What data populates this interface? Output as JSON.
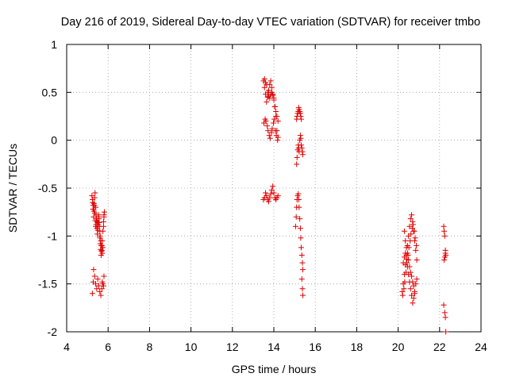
{
  "chart_data": {
    "type": "scatter",
    "title": "Day 216 of 2019, Sidereal Day-to-day VTEC variation (SDTVAR) for receiver tmbo",
    "xlabel": "GPS time / hours",
    "ylabel": "SDTVAR / TECUs",
    "xlim": [
      4,
      24
    ],
    "ylim": [
      -2,
      1
    ],
    "xticks": [
      4,
      6,
      8,
      10,
      12,
      14,
      16,
      18,
      20,
      22,
      24
    ],
    "yticks": [
      1,
      0.5,
      0,
      -0.5,
      -1,
      -1.5,
      -2
    ],
    "xtick_labels": [
      "4",
      "6",
      "8",
      "10",
      "12",
      "14",
      "16",
      "18",
      "20",
      "22",
      "24"
    ],
    "ytick_labels": [
      "1",
      "0.5",
      "0",
      "-0.5",
      "-1",
      "-1.5",
      "-2"
    ],
    "grid": true,
    "marker": "+",
    "color": "#e00000",
    "series": [
      {
        "name": "SDTVAR",
        "x": [
          5.22,
          5.25,
          5.28,
          5.3,
          5.32,
          5.35,
          5.37,
          5.4,
          5.42,
          5.45,
          5.47,
          5.5,
          5.52,
          5.55,
          5.57,
          5.6,
          5.62,
          5.65,
          5.67,
          5.7,
          5.72,
          5.75,
          5.78,
          5.8,
          5.82,
          5.25,
          5.27,
          5.3,
          5.32,
          5.34,
          5.36,
          5.38,
          5.4,
          5.42,
          5.44,
          5.46,
          5.48,
          5.5,
          5.52,
          5.54,
          5.56,
          5.58,
          5.6,
          5.62,
          5.64,
          5.66,
          5.68,
          5.7,
          5.72,
          5.75,
          5.78,
          5.8,
          5.24,
          5.28,
          5.3,
          5.35,
          5.4,
          5.45,
          5.5,
          5.55,
          5.6,
          5.65,
          5.7,
          5.72,
          5.75,
          5.78,
          5.8,
          13.5,
          13.55,
          13.6,
          13.65,
          13.7,
          13.75,
          13.8,
          13.85,
          13.9,
          13.95,
          14.0,
          14.05,
          14.1,
          14.15,
          14.2,
          13.52,
          13.58,
          13.62,
          13.68,
          13.72,
          13.78,
          13.82,
          13.88,
          13.92,
          13.98,
          14.02,
          14.08,
          14.12,
          14.18,
          13.55,
          13.6,
          13.65,
          13.7,
          13.75,
          13.8,
          13.85,
          13.9,
          13.95,
          14.0,
          14.05,
          14.1,
          14.15,
          14.2,
          13.5,
          13.55,
          13.6,
          13.65,
          13.7,
          13.75,
          13.8,
          13.85,
          13.9,
          13.95,
          14.0,
          14.05,
          14.1,
          14.15,
          14.2,
          15.05,
          15.08,
          15.1,
          15.12,
          15.15,
          15.18,
          15.2,
          15.22,
          15.25,
          15.28,
          15.3,
          15.32,
          15.35,
          15.38,
          15.4,
          15.1,
          15.12,
          15.15,
          15.18,
          15.2,
          15.22,
          15.25,
          15.28,
          15.3,
          15.32,
          15.35,
          15.38,
          15.4,
          15.1,
          15.12,
          15.15,
          15.18,
          15.2,
          15.22,
          15.25,
          15.28,
          15.3,
          15.32,
          15.35,
          15.38,
          15.4,
          20.2,
          20.25,
          20.3,
          20.35,
          20.4,
          20.45,
          20.5,
          20.55,
          20.6,
          20.65,
          20.7,
          20.75,
          20.8,
          20.85,
          20.9,
          20.22,
          20.28,
          20.32,
          20.38,
          20.42,
          20.48,
          20.52,
          20.58,
          20.62,
          20.68,
          20.72,
          20.78,
          20.82,
          20.88,
          20.25,
          20.3,
          20.35,
          20.4,
          20.45,
          20.5,
          20.55,
          20.6,
          20.65,
          20.7,
          20.75,
          20.8,
          20.85,
          20.9,
          20.3,
          20.35,
          20.4,
          20.45,
          20.5,
          20.55,
          20.6,
          20.65,
          20.7,
          20.75,
          20.8,
          22.2,
          22.22,
          22.25,
          22.28,
          22.3,
          22.22,
          22.25,
          22.28,
          22.2,
          22.25,
          22.28,
          22.3
        ],
        "y": [
          -0.58,
          -0.62,
          -0.68,
          -0.72,
          -0.66,
          -0.6,
          -0.55,
          -0.7,
          -0.78,
          -0.82,
          -0.85,
          -0.9,
          -0.88,
          -0.8,
          -0.86,
          -0.95,
          -1.0,
          -1.05,
          -1.1,
          -1.15,
          -1.18,
          -1.12,
          -0.9,
          -0.8,
          -0.75,
          -0.65,
          -0.72,
          -0.8,
          -0.74,
          -0.68,
          -0.76,
          -0.84,
          -0.9,
          -0.88,
          -0.84,
          -0.92,
          -0.98,
          -0.94,
          -0.86,
          -0.78,
          -0.82,
          -0.9,
          -1.02,
          -1.08,
          -1.14,
          -1.2,
          -1.16,
          -1.1,
          -1.05,
          -0.95,
          -0.85,
          -0.78,
          -1.6,
          -1.48,
          -1.35,
          -1.42,
          -1.5,
          -1.55,
          -1.45,
          -1.52,
          -1.58,
          -1.62,
          -1.55,
          -1.48,
          -1.5,
          -1.52,
          -1.42,
          0.62,
          0.55,
          0.48,
          0.4,
          0.45,
          0.52,
          0.58,
          0.62,
          0.55,
          0.48,
          0.42,
          0.35,
          0.3,
          0.25,
          0.2,
          0.18,
          0.22,
          0.2,
          0.15,
          0.1,
          0.05,
          0.02,
          0.08,
          0.12,
          0.18,
          0.22,
          0.1,
          0.05,
          0.0,
          0.64,
          0.6,
          0.58,
          0.5,
          0.46,
          0.44,
          0.48,
          0.5,
          0.47,
          0.44,
          0.35,
          0.25,
          0.1,
          0.03,
          -0.62,
          -0.6,
          -0.55,
          -0.58,
          -0.62,
          -0.64,
          -0.6,
          -0.56,
          -0.52,
          -0.48,
          -0.55,
          -0.6,
          -0.62,
          -0.6,
          -0.58,
          -0.9,
          -0.8,
          -0.7,
          -0.62,
          -0.58,
          -0.56,
          -0.62,
          -0.7,
          -0.82,
          -0.92,
          -1.02,
          -1.12,
          -1.2,
          -1.28,
          -1.35,
          -0.25,
          -0.18,
          -0.1,
          -0.05,
          -0.08,
          -0.12,
          0.0,
          0.05,
          0.02,
          -0.05,
          -0.08,
          -0.12,
          -0.15,
          0.22,
          0.25,
          0.28,
          0.3,
          0.34,
          0.32,
          0.3,
          0.28,
          0.25,
          0.22,
          -1.45,
          -1.55,
          -1.62,
          -1.58,
          -1.5,
          -1.4,
          -1.3,
          -1.2,
          -1.1,
          -1.0,
          -0.9,
          -0.82,
          -0.78,
          -0.85,
          -0.95,
          -1.05,
          -1.15,
          -1.25,
          -1.62,
          -1.55,
          -1.48,
          -1.38,
          -1.28,
          -1.2,
          -1.12,
          -1.05,
          -0.98,
          -0.92,
          -0.88,
          -0.95,
          -1.02,
          -1.1,
          -1.28,
          -1.22,
          -1.18,
          -1.24,
          -1.32,
          -1.4,
          -1.48,
          -1.55,
          -1.62,
          -1.7,
          -1.65,
          -1.58,
          -1.5,
          -1.45,
          -0.95,
          -1.05,
          -1.12,
          -1.18,
          -1.25,
          -1.32,
          -1.38,
          -1.42,
          -1.48,
          -1.52,
          -1.6,
          -0.9,
          -0.95,
          -1.0,
          -1.15,
          -1.2,
          -1.25,
          -1.22,
          -1.18,
          -1.72,
          -1.8,
          -1.85,
          -2.0
        ]
      }
    ]
  }
}
